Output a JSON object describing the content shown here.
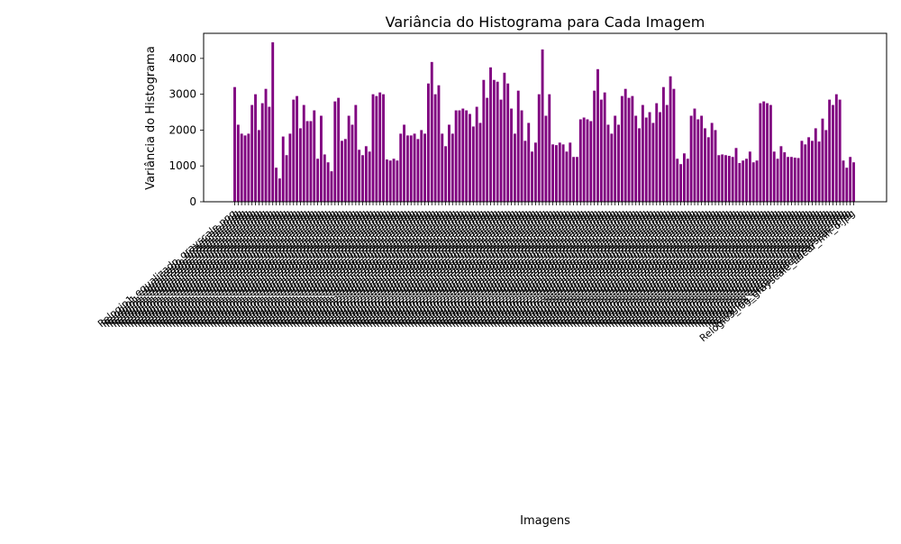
{
  "chart_data": {
    "type": "bar",
    "title": "Variância do Histograma para Cada Imagem",
    "xlabel": "Imagens",
    "ylabel": "Variância do Histograma",
    "ylim": [
      0,
      4700
    ],
    "yticks": [
      0,
      1000,
      2000,
      3000,
      4000
    ],
    "grid": false,
    "legend": "none",
    "bar_color": "#800080",
    "values": [
      3200,
      2150,
      1900,
      1850,
      1900,
      2700,
      3000,
      2000,
      2750,
      3150,
      2650,
      4450,
      950,
      650,
      1820,
      1300,
      1900,
      2850,
      2950,
      2050,
      2700,
      2250,
      2250,
      2550,
      1200,
      2400,
      1320,
      1100,
      850,
      2800,
      2900,
      1700,
      1750,
      2400,
      2150,
      2700,
      1450,
      1300,
      1550,
      1400,
      3000,
      2950,
      3050,
      3000,
      1180,
      1150,
      1200,
      1150,
      1900,
      2150,
      1850,
      1850,
      1900,
      1750,
      2000,
      1900,
      3300,
      3900,
      3000,
      3250,
      1900,
      1550,
      2150,
      1900,
      2550,
      2550,
      2600,
      2550,
      2450,
      2100,
      2650,
      2200,
      3400,
      2900,
      3750,
      3400,
      3350,
      2850,
      3600,
      3300,
      2600,
      1900,
      3100,
      2550,
      1700,
      2200,
      1400,
      1650,
      3000,
      4250,
      2400,
      3000,
      1600,
      1580,
      1650,
      1600,
      1400,
      1650,
      1250,
      1250,
      2300,
      2350,
      2300,
      2250,
      3100,
      3700,
      2850,
      3050,
      2150,
      1900,
      2400,
      2150,
      2950,
      3150,
      2900,
      2950,
      2400,
      2050,
      2700,
      2350,
      2500,
      2200,
      2750,
      2500,
      3200,
      2700,
      3500,
      3150,
      1200,
      1050,
      1350,
      1200,
      2400,
      2600,
      2300,
      2400,
      2050,
      1800,
      2200,
      2000,
      1300,
      1320,
      1300,
      1280,
      1250,
      1500,
      1080,
      1150,
      1200,
      1400,
      1100,
      1150,
      2750,
      2800,
      2750,
      2700,
      1400,
      1200,
      1550,
      1380,
      1250,
      1250,
      1230,
      1220,
      1700,
      1600,
      1800,
      1700,
      2050,
      1680,
      2320,
      2000,
      2850,
      2700,
      3000,
      2850,
      1150,
      950,
      1250,
      1100
    ],
    "category_labels_note": "",
    "sample_tick_labels": [
      "Relogio1_equalizado_grayscale.png",
      "Relogio2_equalizado_grayscale.png",
      "Relogio3_equalizado_grayscale.png",
      "Relogio3_log_grayscale_linear_mh_o.jpg"
    ]
  }
}
